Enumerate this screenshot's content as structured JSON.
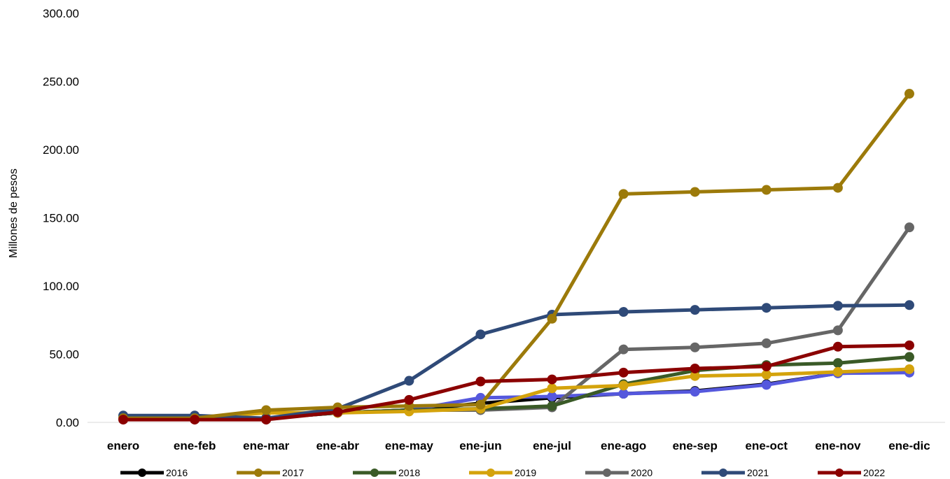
{
  "chart_data": {
    "type": "line",
    "title": "",
    "xlabel": "",
    "ylabel": "Millones de pesos",
    "ylim": [
      0,
      300
    ],
    "yticks": [
      "0.00",
      "50.00",
      "100.00",
      "150.00",
      "200.00",
      "250.00",
      "300.00"
    ],
    "grid": false,
    "legend_position": "bottom",
    "categories": [
      "enero",
      "ene-feb",
      "ene-mar",
      "ene-abr",
      "ene-may",
      "ene-jun",
      "ene-jul",
      "ene-ago",
      "ene-sep",
      "ene-oct",
      "ene-nov",
      "ene-dic"
    ],
    "series": [
      {
        "name": "2016",
        "color": "#000000",
        "values": [
          3,
          3,
          3,
          7,
          9,
          14,
          18,
          21,
          23,
          28,
          36,
          37
        ]
      },
      {
        "name": "2017",
        "color": "#9C7A0A",
        "values": [
          3,
          3,
          9,
          11,
          12,
          13,
          76,
          167.5,
          169,
          170.5,
          172,
          241
        ]
      },
      {
        "name": "2018",
        "color": "#3A5A27",
        "values": [
          3,
          3,
          3,
          7,
          9,
          10,
          12,
          28,
          38,
          42,
          43.5,
          48
        ]
      },
      {
        "name": "2019",
        "color": "#D4A30C",
        "values": [
          3,
          3,
          7,
          7,
          8,
          10,
          25,
          27,
          34,
          35,
          37,
          39
        ]
      },
      {
        "name": "2020",
        "color": "#666666",
        "values": [
          3,
          3,
          3,
          7,
          9,
          9,
          11,
          53.5,
          55,
          58,
          67.5,
          143
        ]
      },
      {
        "name": "2021",
        "color": "#2F4A78",
        "values": [
          5,
          5,
          3,
          10,
          30.5,
          64.5,
          79,
          81,
          82.5,
          84,
          85.5,
          86
        ]
      },
      {
        "name": "2022",
        "color": "#8B0000",
        "values": [
          2,
          2,
          2,
          7.5,
          16.5,
          30,
          31.5,
          36.5,
          39.5,
          41,
          55.5,
          56.5
        ]
      }
    ],
    "overlay_series": {
      "color": "#5558DD",
      "values": [
        3,
        3,
        3,
        7,
        9,
        18,
        19,
        21,
        22.5,
        27.5,
        36,
        36.5
      ]
    }
  }
}
